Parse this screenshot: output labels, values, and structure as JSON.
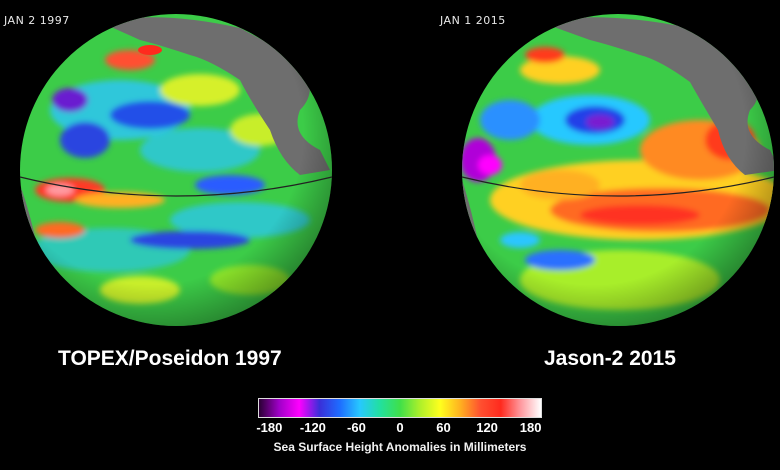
{
  "panels": [
    {
      "date": "JAN 2 1997",
      "title": "TOPEX/Poseidon 1997"
    },
    {
      "date": "JAN 1 2015",
      "title": "Jason-2 2015"
    }
  ],
  "colorbar": {
    "ticks": [
      "-180",
      "-120",
      "-60",
      "0",
      "60",
      "120",
      "180"
    ],
    "caption": "Sea Surface Height Anomalies in Millimeters",
    "colors": [
      "#2a0033",
      "#a000c8",
      "#ff00ff",
      "#3a2fd8",
      "#1e6cff",
      "#27c8ff",
      "#22e0a0",
      "#3fe04a",
      "#aef02a",
      "#ffff1e",
      "#ffb020",
      "#ff5030",
      "#ff2a1e",
      "#ff9aa0",
      "#ffffff"
    ]
  },
  "map": {
    "ocean_base": "#39c44a",
    "land_color": "#6e6e6e"
  }
}
